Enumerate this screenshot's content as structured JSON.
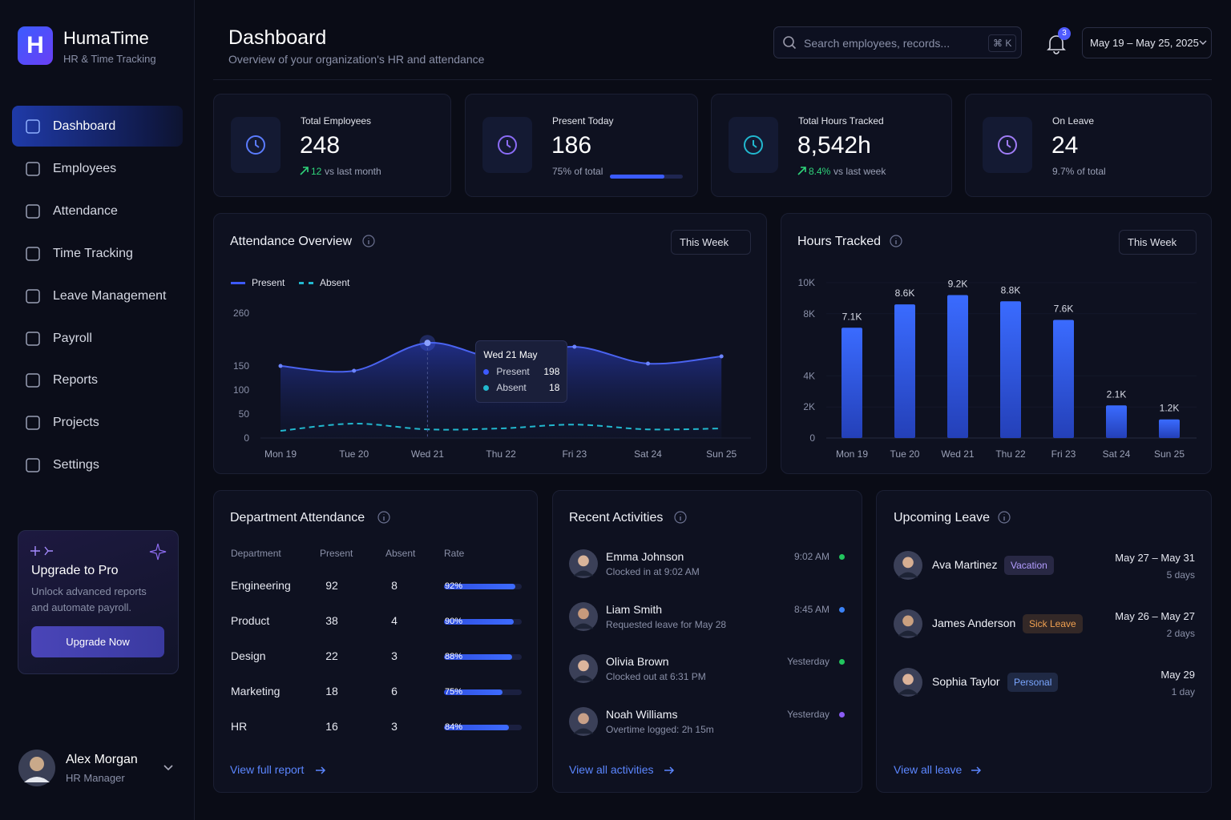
{
  "sidebar": {
    "logo": "H",
    "brand": "HumaTime",
    "tagline": "HR & Time Tracking",
    "nav": [
      "Dashboard",
      "Employees",
      "Attendance",
      "Time Tracking",
      "Leave Management",
      "Payroll",
      "Reports",
      "Projects",
      "Settings"
    ],
    "promo": {
      "title": "Upgrade to Pro",
      "text": "Unlock advanced reports and automate payroll.",
      "button": "Upgrade Now"
    },
    "user": {
      "name": "Alex Morgan",
      "role": "HR Manager"
    }
  },
  "header": {
    "title": "Dashboard",
    "subtitle": "Overview of your organization's HR and attendance",
    "search_placeholder": "Search employees, records...",
    "shortcut": "⌘ K",
    "notifications": 3,
    "date_range": "May 19 – May 25, 2025"
  },
  "stats": [
    {
      "label": "Total Employees",
      "value": "248",
      "change": "12",
      "note": "vs last month"
    },
    {
      "label": "Present Today",
      "value": "186",
      "note": "75% of total",
      "progress": 75
    },
    {
      "label": "Total Hours Tracked",
      "value": "8,542h",
      "change": "8.4%",
      "note": "vs last week"
    },
    {
      "label": "On Leave",
      "value": "24",
      "note": "9.7% of total"
    }
  ],
  "attendance_chart": {
    "type": "line",
    "title": "Attendance Overview",
    "period": "This Week",
    "categories": [
      "Mon 19",
      "Tue 20",
      "Wed 21",
      "Thu 22",
      "Fri 23",
      "Sat 24",
      "Sun 25"
    ],
    "series": [
      {
        "name": "Present",
        "color": "#3d5afe",
        "values": [
          150,
          140,
          198,
          165,
          190,
          155,
          170
        ]
      },
      {
        "name": "Absent",
        "color": "#22b8cf",
        "values": [
          15,
          30,
          18,
          20,
          28,
          18,
          20
        ]
      }
    ],
    "ylim": [
      0,
      260
    ],
    "yticks": [
      0,
      50,
      100,
      150,
      260
    ],
    "tooltip": {
      "title": "Wed 21 May"
    }
  },
  "hours_chart": {
    "type": "bar",
    "title": "Hours Tracked",
    "period": "This Week",
    "categories": [
      "Mon 19",
      "Tue 20",
      "Wed 21",
      "Thu 22",
      "Fri 23",
      "Sat 24",
      "Sun 25"
    ],
    "values": [
      7100,
      8600,
      9200,
      8800,
      7600,
      2100,
      1200
    ],
    "value_labels": [
      "7.1K",
      "8.6K",
      "9.2K",
      "8.8K",
      "7.6K",
      "2.1K",
      "1.2K"
    ],
    "color": "#2f5bef",
    "ylim": [
      0,
      10000
    ],
    "yticks": [
      0,
      {
        "value": 2000,
        "label": "2K"
      },
      {
        "value": 4000,
        "label": "4K"
      },
      {
        "value": 8000,
        "label": "8K"
      },
      {
        "value": 10000,
        "label": "10K"
      }
    ]
  },
  "departments": {
    "title": "Department Attendance",
    "columns": [
      "Department",
      "Present",
      "Absent",
      "Rate"
    ],
    "rows": [
      {
        "name": "Engineering",
        "present": 92,
        "absent": 8,
        "rate": 92,
        "rate_label": "92%"
      },
      {
        "name": "Product",
        "present": 38,
        "absent": 4,
        "rate": 90,
        "rate_label": "90%"
      },
      {
        "name": "Design",
        "present": 22,
        "absent": 3,
        "rate": 88,
        "rate_label": "88%"
      },
      {
        "name": "Marketing",
        "present": 18,
        "absent": 6,
        "rate": 75,
        "rate_label": "75%"
      },
      {
        "name": "HR",
        "present": 16,
        "absent": 3,
        "rate": 84,
        "rate_label": "84%"
      }
    ],
    "link": "View full report"
  },
  "activities": {
    "title": "Recent Activities",
    "items": [
      {
        "name": "Emma Johnson",
        "detail": "Clocked in at 9:02 AM",
        "time": "9:02 AM",
        "color": "#22c55e"
      },
      {
        "name": "Liam Smith",
        "detail": "Requested leave for May 28",
        "time": "8:45 AM",
        "color": "#3b82f6"
      },
      {
        "name": "Olivia Brown",
        "detail": "Clocked out at 6:31 PM",
        "time": "Yesterday",
        "color": "#22c55e"
      },
      {
        "name": "Noah Williams",
        "detail": "Overtime logged: 2h 15m",
        "time": "Yesterday",
        "color": "#8b5cf6"
      }
    ],
    "link": "View all activities"
  },
  "leave": {
    "title": "Upcoming Leave",
    "items": [
      {
        "name": "Ava Martinez",
        "type": "Vacation",
        "dates": "May 27 – May 31",
        "duration": "5 days",
        "color": "#b39dff"
      },
      {
        "name": "James Anderson",
        "type": "Sick Leave",
        "dates": "May 26 – May 27",
        "duration": "2 days",
        "color": "#f0a050"
      },
      {
        "name": "Sophia Taylor",
        "type": "Personal",
        "dates": "May 29",
        "duration": "1 day",
        "color": "#7aa6ff"
      }
    ],
    "link": "View all leave"
  }
}
